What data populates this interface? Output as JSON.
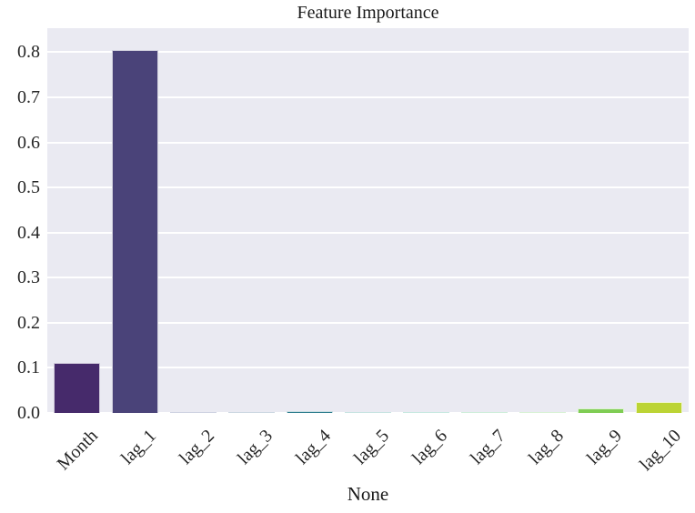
{
  "chart_data": {
    "type": "bar",
    "title": "Feature Importance",
    "xlabel": "None",
    "ylabel": "",
    "categories": [
      "Month",
      "lag_1",
      "lag_2",
      "lag_3",
      "lag_4",
      "lag_5",
      "lag_6",
      "lag_7",
      "lag_8",
      "lag_9",
      "lag_10"
    ],
    "values": [
      0.11,
      0.805,
      0.001,
      0.003,
      0.005,
      0.001,
      0.001,
      0.002,
      0.003,
      0.01,
      0.025
    ],
    "bar_colors": [
      "#462a6b",
      "#4a4379",
      "#424f8b",
      "#38638d",
      "#2e7e8e",
      "#27938c",
      "#24a886",
      "#41bb72",
      "#67c95c",
      "#7fcd54",
      "#bcd434"
    ],
    "ylim": [
      0,
      0.8533
    ],
    "yticks": [
      0.0,
      0.1,
      0.2,
      0.3,
      0.4,
      0.5,
      0.6,
      0.7,
      0.8
    ],
    "ytick_labels": [
      "0.0",
      "0.1",
      "0.2",
      "0.3",
      "0.4",
      "0.5",
      "0.6",
      "0.7",
      "0.8"
    ],
    "grid": true,
    "legend": "none",
    "plot_bg_color": "#eaeaf2",
    "grid_color": "#ffffff",
    "text_color": "#262626"
  }
}
